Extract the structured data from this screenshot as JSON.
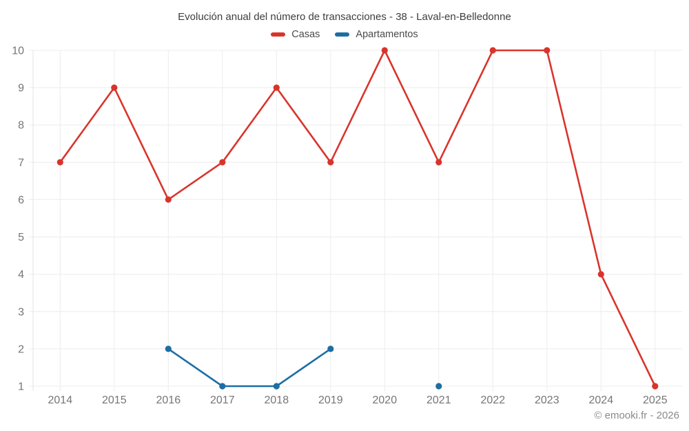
{
  "header": {
    "title": "Evolución anual del número de transacciones - 38 - Laval-en-Belledonne"
  },
  "footer": {
    "watermark": "© emooki.fr - 2026"
  },
  "chart_data": {
    "type": "line",
    "title": "Evolución anual del número de transacciones - 38 - Laval-en-Belledonne",
    "categories": [
      "2014",
      "2015",
      "2016",
      "2017",
      "2018",
      "2019",
      "2020",
      "2021",
      "2022",
      "2023",
      "2024",
      "2025"
    ],
    "series": [
      {
        "name": "Casas",
        "color": "#d9342c",
        "values": [
          7,
          9,
          6,
          7,
          9,
          7,
          10,
          7,
          10,
          10,
          4,
          1
        ]
      },
      {
        "name": "Apartamentos",
        "color": "#1c6ea4",
        "values": [
          null,
          null,
          2,
          1,
          1,
          2,
          null,
          1,
          null,
          null,
          null,
          null
        ]
      }
    ],
    "xlabel": "",
    "ylabel": "",
    "ylim": [
      1,
      10
    ],
    "y_ticks": [
      1,
      2,
      3,
      4,
      5,
      6,
      7,
      8,
      9,
      10
    ],
    "grid": true,
    "legend_position": "top",
    "colors": {
      "grid": "#ececec",
      "axis": "#e3e3e3",
      "tick_text": "#757575"
    }
  }
}
